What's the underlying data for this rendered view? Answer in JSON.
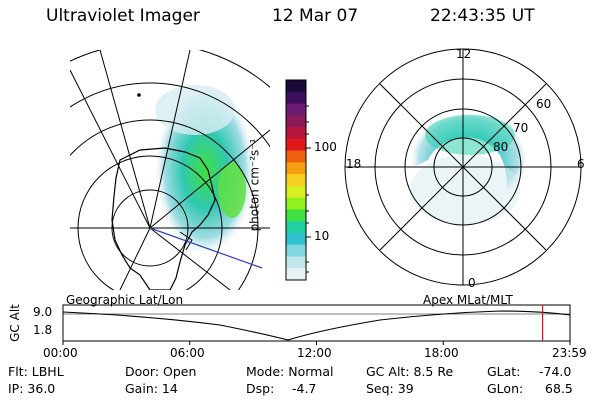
{
  "header": {
    "instrument": "Ultraviolet Imager",
    "date": "12 Mar 07",
    "time": "22:43:35 UT"
  },
  "maps": {
    "left_label": "Geographic Lat/Lon",
    "right_label": "Apex MLat/MLT"
  },
  "colorbar": {
    "unit_label": "photon cm⁻²s⁻¹",
    "ticks": [
      "100",
      "10"
    ],
    "colors": [
      "#1a0a3a",
      "#3b0f5e",
      "#6a1a70",
      "#8a1a5a",
      "#b8163a",
      "#e01a1a",
      "#f06010",
      "#f5a010",
      "#f5d020",
      "#d8f020",
      "#90f020",
      "#40e040",
      "#20d0a0",
      "#30c0d0",
      "#80d8e0",
      "#c0e8ec",
      "#e8f2f4"
    ]
  },
  "polar": {
    "mlt_labels": {
      "top": "12",
      "left": "18",
      "right": "6",
      "bottom": "0"
    },
    "lat_labels": [
      "60",
      "70",
      "80"
    ]
  },
  "timeline": {
    "ylabel": "GC Alt",
    "ymax": "9.0",
    "ymin": "1.8",
    "xticks": [
      "00:00",
      "06:00",
      "12:00",
      "18:00",
      "23:59"
    ],
    "current_time_fraction": 0.946
  },
  "status": {
    "filter": "Flt: LBHL",
    "ip": "IP: 36.0",
    "door": "Door: Open",
    "gain": "Gain: 14",
    "mode": "Mode: Normal",
    "dsp_label": "Dsp:",
    "dsp_value": "-4.7",
    "gc_alt": "GC Alt: 8.5 Re",
    "seq": "Seq: 39",
    "glat_label": "GLat:",
    "glat_value": "-74.0",
    "glon_label": "GLon:",
    "glon_value": "68.5"
  }
}
